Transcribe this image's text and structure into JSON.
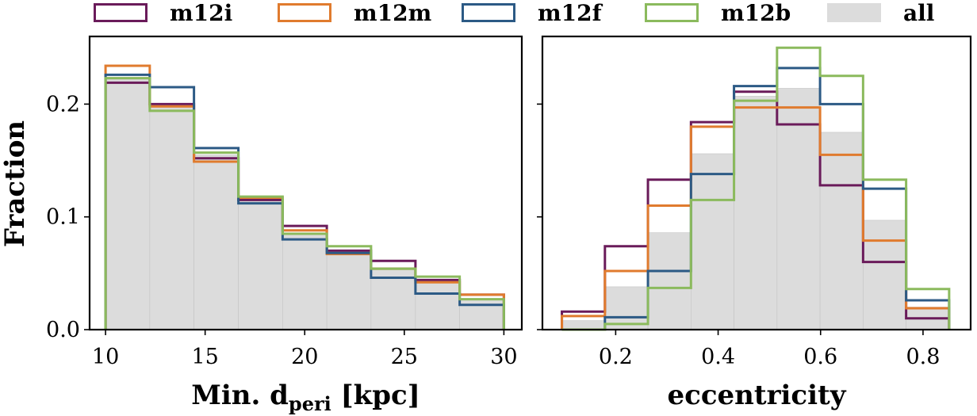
{
  "legend": {
    "placement": "top",
    "entries": [
      {
        "label": "m12i",
        "color": "#6a1b5a"
      },
      {
        "label": "m12m",
        "color": "#e07b2e"
      },
      {
        "label": "m12f",
        "color": "#2c5a85"
      },
      {
        "label": "m12b",
        "color": "#8bba5d"
      },
      {
        "label": "all",
        "color": "#dcdcdc",
        "filled": true
      }
    ]
  },
  "chart_data": [
    {
      "type": "histogram",
      "xlabel": "Min. d",
      "xlabel_subscript": "peri",
      "xlabel_unit": "[kpc]",
      "ylabel": "Fraction",
      "xlim": [
        9.2,
        30.9
      ],
      "ylim": [
        0,
        0.26
      ],
      "xticks": [
        10,
        15,
        20,
        25,
        30
      ],
      "yticks": [
        0.0,
        0.1,
        0.2
      ],
      "ytick_labels": [
        "0.0",
        "0.1",
        "0.2"
      ],
      "bin_edges": [
        10,
        12.22,
        14.44,
        16.67,
        18.89,
        21.11,
        23.33,
        25.56,
        27.78,
        30
      ],
      "series": [
        {
          "name": "m12i",
          "values": [
            0.219,
            0.2,
            0.152,
            0.115,
            0.092,
            0.07,
            0.061,
            0.044,
            0.031
          ]
        },
        {
          "name": "m12m",
          "values": [
            0.234,
            0.198,
            0.149,
            0.117,
            0.088,
            0.067,
            0.054,
            0.042,
            0.031
          ]
        },
        {
          "name": "m12f",
          "values": [
            0.226,
            0.215,
            0.161,
            0.112,
            0.08,
            0.068,
            0.046,
            0.032,
            0.022
          ]
        },
        {
          "name": "m12b",
          "values": [
            0.223,
            0.194,
            0.157,
            0.118,
            0.085,
            0.074,
            0.054,
            0.047,
            0.027
          ]
        },
        {
          "name": "all",
          "filled": true,
          "values": [
            0.222,
            0.197,
            0.155,
            0.115,
            0.085,
            0.07,
            0.055,
            0.043,
            0.027
          ]
        }
      ]
    },
    {
      "type": "histogram",
      "xlabel": "eccentricity",
      "xlim": [
        0.057,
        0.893
      ],
      "ylim": [
        0,
        0.26
      ],
      "xticks": [
        0.2,
        0.4,
        0.6,
        0.8
      ],
      "xtick_labels": [
        "0.2",
        "0.4",
        "0.6",
        "0.8"
      ],
      "yticks": [
        0.0,
        0.1,
        0.2
      ],
      "bin_edges": [
        0.095,
        0.179,
        0.263,
        0.347,
        0.431,
        0.515,
        0.599,
        0.683,
        0.767,
        0.851
      ],
      "series": [
        {
          "name": "m12i",
          "values": [
            0.016,
            0.074,
            0.133,
            0.184,
            0.211,
            0.182,
            0.128,
            0.06,
            0.01
          ]
        },
        {
          "name": "m12m",
          "values": [
            0.012,
            0.052,
            0.11,
            0.18,
            0.197,
            0.197,
            0.155,
            0.079,
            0.019
          ]
        },
        {
          "name": "m12f",
          "values": [
            0.0,
            0.011,
            0.052,
            0.138,
            0.216,
            0.232,
            0.2,
            0.125,
            0.026
          ]
        },
        {
          "name": "m12b",
          "values": [
            0.0,
            0.005,
            0.037,
            0.115,
            0.203,
            0.25,
            0.225,
            0.133,
            0.036
          ]
        },
        {
          "name": "all",
          "filled": true,
          "values": [
            0.008,
            0.038,
            0.086,
            0.156,
            0.207,
            0.214,
            0.175,
            0.097,
            0.02
          ]
        }
      ]
    }
  ]
}
